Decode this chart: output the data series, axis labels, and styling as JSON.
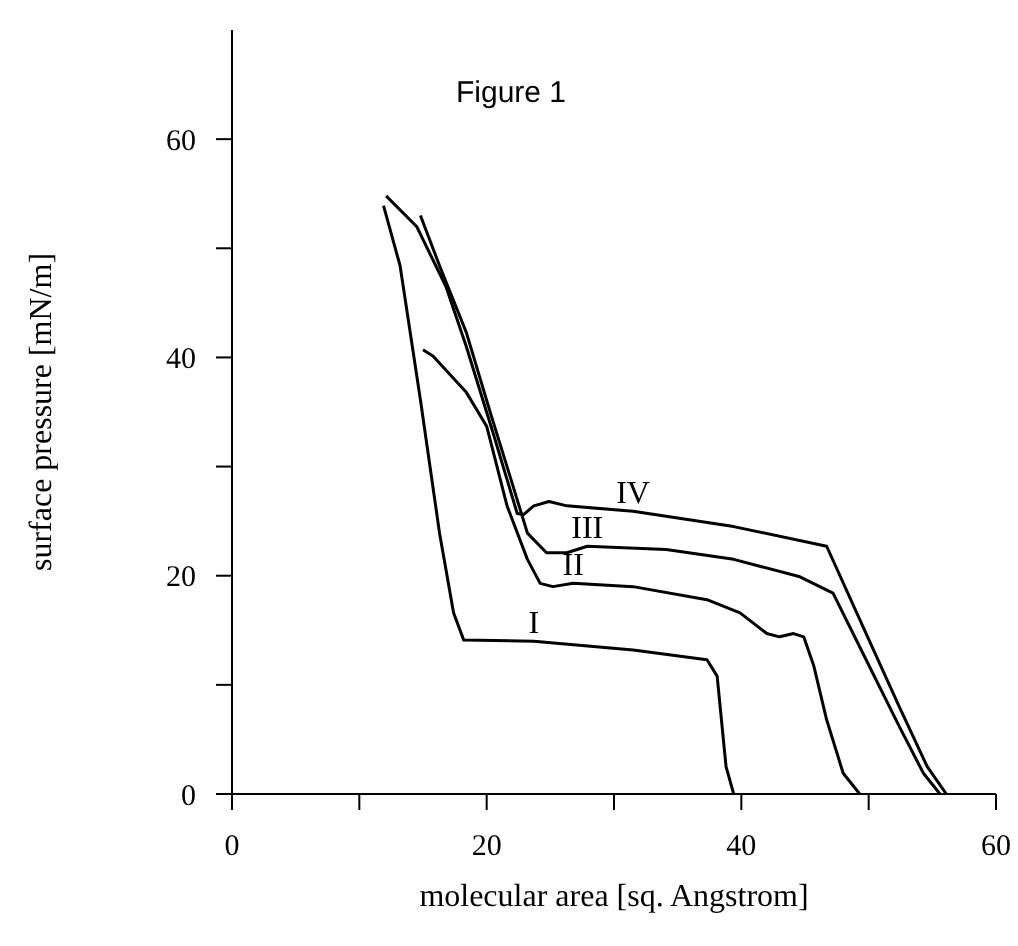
{
  "chart_data": {
    "type": "line",
    "title": "Figure 1",
    "xlabel": "molecular area [sq. Angstrom]",
    "ylabel": "surface pressure [mN/m]",
    "xlim": [
      0,
      60
    ],
    "ylim": [
      0,
      70
    ],
    "xticks": [
      0,
      {
        "value": 10,
        "label": null
      },
      20,
      {
        "value": 30,
        "label": null
      },
      40,
      {
        "value": 50,
        "label": null
      },
      60
    ],
    "yticks": [
      0,
      {
        "value": 10,
        "label": null
      },
      20,
      {
        "value": 30,
        "label": null
      },
      40,
      {
        "value": 50,
        "label": null
      },
      60
    ],
    "grid": false,
    "legend": false,
    "marker": "none",
    "line_style": "solid",
    "series": [
      {
        "name": "I",
        "color": "#000000",
        "x": [
          11.9,
          13.2,
          14.8,
          16.3,
          17.4,
          18.2,
          23.7,
          31.5,
          37.3,
          38.1,
          38.8,
          39.4
        ],
        "values": [
          53.9,
          48.4,
          36.1,
          23.9,
          16.6,
          14.1,
          14.0,
          13.2,
          12.3,
          10.8,
          2.5,
          0
        ]
      },
      {
        "name": "II",
        "color": "#000000",
        "x": [
          15.0,
          15.8,
          18.4,
          20.0,
          21.6,
          23.2,
          24.2,
          25.2,
          26.8,
          31.5,
          37.3,
          39.9,
          42.0,
          43.0,
          44.1,
          44.9,
          45.7,
          46.7,
          48.0,
          49.3
        ],
        "values": [
          40.7,
          40.1,
          36.8,
          33.7,
          26.4,
          21.5,
          19.3,
          19.0,
          19.3,
          19.0,
          17.8,
          16.6,
          14.7,
          14.4,
          14.7,
          14.4,
          11.7,
          6.8,
          1.9,
          0
        ]
      },
      {
        "name": "III",
        "color": "#000000",
        "x": [
          14.8,
          16.3,
          18.4,
          20.3,
          21.6,
          23.2,
          24.7,
          26.3,
          27.9,
          34.1,
          39.4,
          44.6,
          47.2,
          49.8,
          52.4,
          54.3,
          55.6
        ],
        "values": [
          53.0,
          48.4,
          42.3,
          34.9,
          30.0,
          23.9,
          22.1,
          22.1,
          22.7,
          22.4,
          21.5,
          19.9,
          18.4,
          12.3,
          6.2,
          1.9,
          0
        ]
      },
      {
        "name": "IV",
        "color": "#000000",
        "x": [
          12.1,
          14.5,
          16.8,
          18.4,
          20.5,
          22.4,
          22.9,
          23.7,
          24.9,
          26.3,
          31.5,
          39.4,
          46.7,
          49.8,
          52.4,
          54.6,
          56.1
        ],
        "values": [
          54.8,
          52.0,
          46.5,
          41.0,
          33.1,
          25.7,
          25.6,
          26.4,
          26.8,
          26.4,
          25.9,
          24.5,
          22.7,
          14.7,
          8.0,
          2.5,
          0
        ]
      }
    ]
  }
}
